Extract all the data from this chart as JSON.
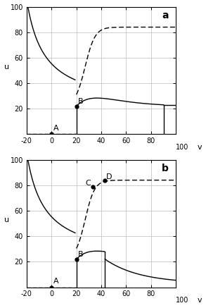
{
  "fig_width": 2.93,
  "fig_height": 4.37,
  "dpi": 100,
  "xlim": [
    -20,
    100
  ],
  "ylim": [
    0,
    100
  ],
  "xticks": [
    -20,
    0,
    20,
    40,
    60,
    80
  ],
  "yticks": [
    0,
    20,
    40,
    60,
    80,
    100
  ],
  "xlabel": "v",
  "ylabel": "u",
  "grid_color": "#bbbbbb",
  "grid_lw": 0.5,
  "panel_a_label": "a",
  "panel_b_label": "b",
  "line_color": "black",
  "lw": 1.0,
  "markersize": 3.5,
  "fontsize_tick": 7,
  "fontsize_label": 8,
  "fontsize_point": 8,
  "fontsize_panel": 10,
  "pt_A": [
    0,
    0
  ],
  "pt_B_a": [
    20,
    22
  ],
  "pt_B_b": [
    20,
    22
  ],
  "pt_C": [
    33,
    79
  ],
  "pt_D": [
    43,
    84
  ]
}
